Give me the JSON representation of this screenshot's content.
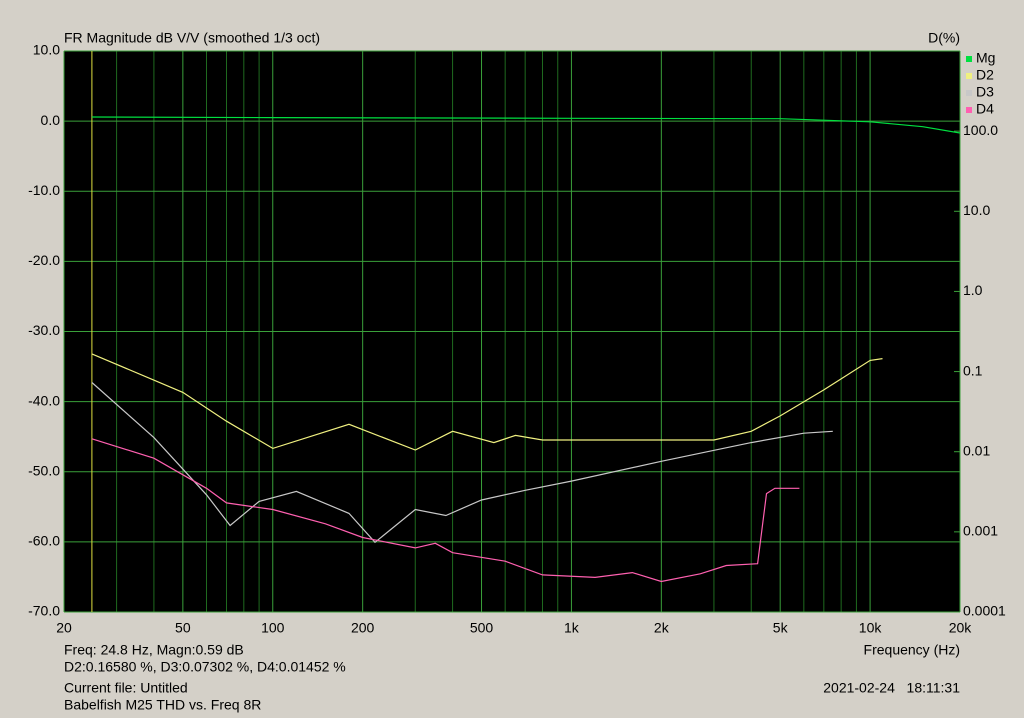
{
  "chart_data": {
    "type": "line",
    "title": "FR Magnitude dB V/V (smoothed 1/3 oct)",
    "y2_label": "D(%)",
    "x_label": "Frequency (Hz)",
    "xlog": true,
    "xlim": [
      20,
      20000
    ],
    "xticks": [
      20,
      50,
      100,
      200,
      500,
      {
        "value": 1000,
        "label": "1k"
      },
      {
        "value": 2000,
        "label": "2k"
      },
      {
        "value": 5000,
        "label": "5k"
      },
      {
        "value": 10000,
        "label": "10k"
      },
      {
        "value": 20000,
        "label": "20k"
      }
    ],
    "xminorticks": [
      30,
      40,
      60,
      70,
      80,
      90,
      300,
      400,
      600,
      700,
      800,
      900,
      3000,
      4000,
      6000,
      7000,
      8000,
      9000
    ],
    "ylim": [
      -70,
      10
    ],
    "yticks": [
      {
        "value": 10,
        "label": "10.0"
      },
      {
        "value": 0,
        "label": "0.0"
      },
      {
        "value": -10,
        "label": "-10.0"
      },
      {
        "value": -20,
        "label": "-20.0"
      },
      {
        "value": -30,
        "label": "-30.0"
      },
      {
        "value": -40,
        "label": "-40.0"
      },
      {
        "value": -50,
        "label": "-50.0"
      },
      {
        "value": -60,
        "label": "-60.0"
      },
      {
        "value": -70,
        "label": "-70.0"
      }
    ],
    "y2log": true,
    "y2lim": [
      0.0001,
      1000
    ],
    "y2ticks": [
      {
        "value": 100,
        "label": "100.0"
      },
      {
        "value": 10,
        "label": "10.0"
      },
      {
        "value": 1,
        "label": "1.0"
      },
      0.1,
      0.01,
      0.001,
      0.0001
    ],
    "grid": true,
    "cursor_x": 24.8,
    "series": [
      {
        "name": "Mg",
        "color": "#00e040",
        "x": [
          24.8,
          100,
          1000,
          5000,
          10000,
          15000,
          20000
        ],
        "values": [
          0.59,
          0.5,
          0.4,
          0.35,
          -0.1,
          -0.8,
          -1.7
        ]
      },
      {
        "name": "D2",
        "color": "#f0f080",
        "axis": "y2",
        "x": [
          24.8,
          50,
          70,
          100,
          180,
          300,
          400,
          550,
          650,
          800,
          1000,
          3000,
          4000,
          5000,
          7000,
          10000,
          11000
        ],
        "values": [
          0.166,
          0.055,
          0.024,
          0.011,
          0.022,
          0.0105,
          0.018,
          0.013,
          0.016,
          0.014,
          0.014,
          0.014,
          0.018,
          0.028,
          0.059,
          0.138,
          0.145
        ]
      },
      {
        "name": "D3",
        "color": "#c8c8c8",
        "axis": "y2",
        "x": [
          24.8,
          40,
          60,
          72,
          90,
          120,
          180,
          220,
          300,
          380,
          500,
          700,
          1000,
          2000,
          4000,
          6000,
          7500
        ],
        "values": [
          0.073,
          0.015,
          0.0029,
          0.0012,
          0.0024,
          0.0032,
          0.0017,
          0.00074,
          0.0019,
          0.0016,
          0.0025,
          0.0033,
          0.0043,
          0.0076,
          0.013,
          0.017,
          0.018
        ]
      },
      {
        "name": "D4",
        "color": "#ff60b0",
        "axis": "y2",
        "x": [
          24.8,
          40,
          60,
          70,
          100,
          150,
          200,
          300,
          350,
          400,
          600,
          800,
          1200,
          1600,
          2000,
          2700,
          3300,
          4200,
          4500,
          4800,
          5800
        ],
        "values": [
          0.0145,
          0.0083,
          0.0035,
          0.0023,
          0.0019,
          0.00126,
          0.00085,
          0.00063,
          0.00072,
          0.00055,
          0.00043,
          0.00029,
          0.00027,
          0.00031,
          0.00024,
          0.0003,
          0.00038,
          0.0004,
          0.003,
          0.0035,
          0.0035
        ]
      }
    ],
    "info": [
      "Freq: 24.8 Hz, Magn:0.59 dB",
      "D2:0.16580 %, D3:0.07302 %, D4:0.01452 %",
      "Current file: Untitled",
      "Babelfish M25 THD vs. Freq 8R"
    ],
    "timestamp": "2021-02-24   18:11:31"
  }
}
